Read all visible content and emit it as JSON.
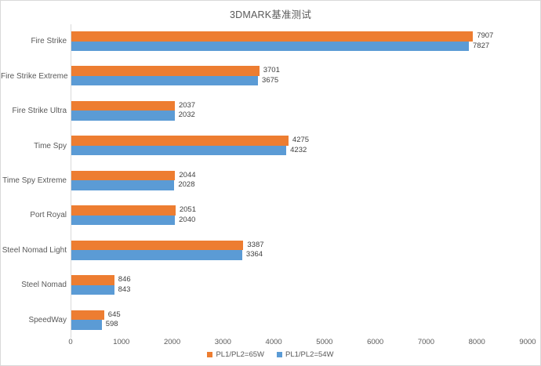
{
  "chart_data": {
    "type": "bar",
    "orientation": "horizontal",
    "title": "3DMARK基准测试",
    "categories": [
      "Fire Strike",
      "Fire Strike Extreme",
      "Fire Strike Ultra",
      "Time Spy",
      "Time Spy Extreme",
      "Port Royal",
      "Steel Nomad Light",
      "Steel Nomad",
      "SpeedWay"
    ],
    "series": [
      {
        "name": "PL1/PL2=65W",
        "color": "#ED7D31",
        "values": [
          7907,
          3701,
          2037,
          4275,
          2044,
          2051,
          3387,
          846,
          645
        ]
      },
      {
        "name": "PL1/PL2=54W",
        "color": "#5B9BD5",
        "values": [
          7827,
          3675,
          2032,
          4232,
          2028,
          2040,
          3364,
          843,
          598
        ]
      }
    ],
    "x_axis": {
      "min": 0,
      "max": 9000,
      "tick_interval": 1000,
      "ticks": [
        0,
        1000,
        2000,
        3000,
        4000,
        5000,
        6000,
        7000,
        8000,
        9000
      ]
    },
    "legend_position": "bottom",
    "gridlines": false,
    "data_labels": true
  }
}
